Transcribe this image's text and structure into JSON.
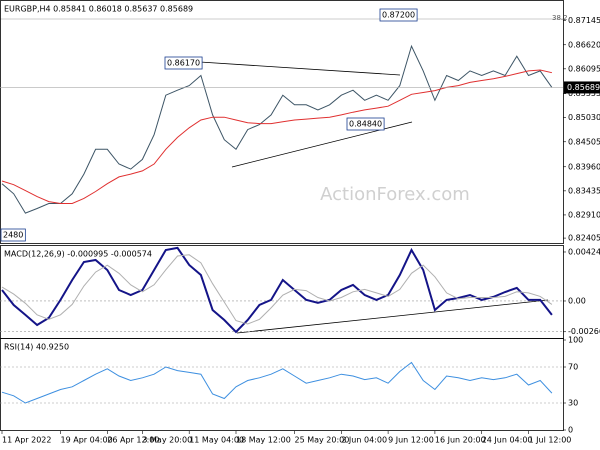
{
  "chart_data": [
    {
      "type": "line",
      "title": "EURGBP,H4  0.85841 0.86018 0.85637 0.85689",
      "watermark": "ActionForex.com",
      "annotations": [
        "0.86170",
        "0.87200",
        "0.84840",
        "2480",
        "38.2"
      ],
      "last_price": 0.85689,
      "ylim": [
        0.82298,
        0.87552
      ],
      "yticks": [
        0.87145,
        {
          "value": 0.8662,
          "label": "0.86620"
        },
        0.86095,
        0.85555,
        {
          "value": 0.8503,
          "label": "0.85030"
        },
        0.84505,
        {
          "value": 0.8396,
          "label": "0.83960"
        },
        0.83435,
        {
          "value": 0.8291,
          "label": "0.82910"
        },
        0.82405
      ],
      "grid": false,
      "series": [
        {
          "name": "EURGBP",
          "color": "#3d5566",
          "values": [
            0.8359,
            0.8337,
            0.8295,
            0.8305,
            0.8316,
            0.8316,
            0.8337,
            0.838,
            0.8434,
            0.8434,
            0.8402,
            0.8391,
            0.8412,
            0.8466,
            0.8552,
            0.8563,
            0.8573,
            0.8595,
            0.8509,
            0.8455,
            0.8434,
            0.8477,
            0.8488,
            0.8509,
            0.8552,
            0.8531,
            0.8531,
            0.852,
            0.8531,
            0.8552,
            0.8563,
            0.8541,
            0.8552,
            0.8541,
            0.8573,
            0.8659,
            0.8605,
            0.8541,
            0.8595,
            0.8584,
            0.8605,
            0.8595,
            0.8605,
            0.8595,
            0.8637,
            0.8595,
            0.8605,
            0.8569
          ]
        },
        {
          "name": "MA",
          "color": "#e03030",
          "values": [
            0.8365,
            0.8357,
            0.8344,
            0.8331,
            0.832,
            0.8316,
            0.8316,
            0.8327,
            0.8342,
            0.8359,
            0.8374,
            0.838,
            0.8387,
            0.8402,
            0.8434,
            0.846,
            0.8481,
            0.8498,
            0.8504,
            0.8504,
            0.8498,
            0.8492,
            0.849,
            0.849,
            0.8494,
            0.8498,
            0.85,
            0.8502,
            0.8504,
            0.8509,
            0.8515,
            0.852,
            0.8524,
            0.8528,
            0.8541,
            0.8554,
            0.8558,
            0.8562,
            0.8569,
            0.8573,
            0.858,
            0.8584,
            0.8588,
            0.8593,
            0.8599,
            0.8605,
            0.8607,
            0.8601
          ]
        }
      ]
    },
    {
      "type": "line",
      "title": "MACD(12,26,9) -0.000995 -0.000574",
      "ylim": [
        -0.00321,
        0.00468
      ],
      "yticks": [
        0.004248,
        {
          "value": 0,
          "label": "0.00"
        },
        -0.002667
      ],
      "grid": true,
      "series": [
        {
          "name": "MACD",
          "color": "#141488",
          "values": [
            0.00095,
            -0.00035,
            -0.00121,
            -0.00208,
            -0.00147,
            9e-05,
            0.00182,
            0.00338,
            0.00355,
            0.00269,
            0.00095,
            0.00052,
            0.00095,
            0.00269,
            0.00442,
            0.0046,
            0.00312,
            0.00225,
            -0.00078,
            -0.00165,
            -0.00269,
            -0.00165,
            -0.00035,
            9e-05,
            0.00182,
            0.00095,
            9e-05,
            -0.00017,
            9e-05,
            0.00095,
            0.00139,
            0.00052,
            9e-05,
            0.00052,
            0.00225,
            0.00442,
            0.00269,
            -0.00078,
            9e-05,
            0.00026,
            0.00052,
            9e-05,
            0.00035,
            0.00078,
            0.00113,
            9e-05,
            9e-05,
            -0.00121
          ]
        },
        {
          "name": "Signal",
          "color": "#b0b0b0",
          "values": [
            0.0012,
            0.0006,
            -0.0002,
            -0.0012,
            -0.0016,
            -0.0012,
            -0.0003,
            0.0013,
            0.0025,
            0.0031,
            0.0024,
            0.0014,
            0.0008,
            0.0014,
            0.0027,
            0.0039,
            0.004,
            0.0033,
            0.0015,
            -0.0001,
            -0.0017,
            -0.002,
            -0.0016,
            -0.0006,
            0.0005,
            0.001,
            0.0009,
            0.0003,
            0,
            0.0003,
            0.0008,
            0.001,
            0.0007,
            0.0004,
            0.001,
            0.0024,
            0.0031,
            0.0021,
            0.0007,
            0.0002,
            0.0003,
            0.0003,
            0.0003,
            0.0004,
            0.0008,
            0.0007,
            0.0004,
            -0.0003
          ]
        }
      ]
    },
    {
      "type": "line",
      "title": "RSI(14) 40.9250",
      "ylim": [
        0,
        100
      ],
      "yticks": [
        100,
        70,
        30,
        0
      ],
      "grid": true,
      "categories": [
        "11 Apr 2022",
        null,
        null,
        null,
        null,
        "19 Apr 04:00",
        null,
        null,
        null,
        "26 Apr 12:00",
        null,
        null,
        "3 May 20:00",
        null,
        null,
        null,
        "11 May 04:00",
        null,
        null,
        null,
        "18 May 12:00",
        null,
        null,
        null,
        null,
        "25 May 20:00",
        null,
        null,
        null,
        "2 Jun 04:00",
        null,
        null,
        null,
        "9 Jun 12:00",
        null,
        null,
        null,
        "16 Jun 20:00",
        null,
        null,
        null,
        "24 Jun 04:00",
        null,
        null,
        null,
        "1 Jul 12:00",
        null,
        null
      ],
      "series": [
        {
          "name": "RSI",
          "color": "#3d8fe0",
          "values": [
            42,
            38,
            30,
            35,
            40,
            45,
            48,
            55,
            62,
            68,
            60,
            55,
            58,
            62,
            70,
            66,
            64,
            62,
            40,
            35,
            48,
            55,
            58,
            62,
            68,
            60,
            52,
            55,
            58,
            62,
            60,
            56,
            58,
            52,
            65,
            75,
            55,
            45,
            60,
            58,
            55,
            58,
            56,
            58,
            62,
            50,
            55,
            41
          ]
        }
      ]
    }
  ]
}
